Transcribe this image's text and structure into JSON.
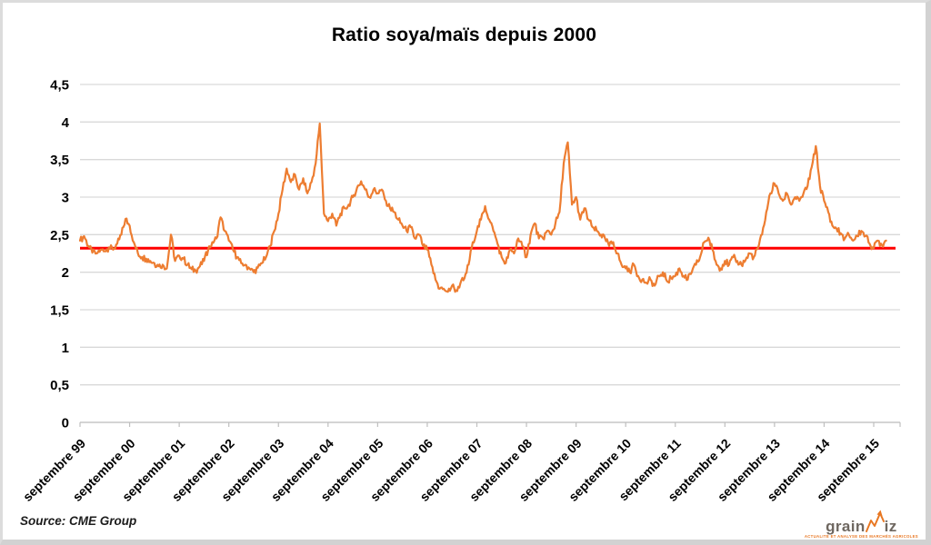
{
  "title": "Ratio soya/maïs depuis 2000",
  "source_note": "Source: CME Group",
  "logo": {
    "text_grain": "grain",
    "text_iz": "iz",
    "tagline": "ACTUALITÉ ET ANALYSE DES MARCHÉS AGRICOLES",
    "accent_color": "#E87722",
    "text_color": "#6E6760"
  },
  "colors": {
    "series_orange": "#ED7D31",
    "reference_red": "#FF0000",
    "gridline": "#D9D9D9",
    "axis": "#BFBFBF",
    "text": "#000000",
    "frame_border": "#D2D2D2"
  },
  "chart_data": {
    "type": "line",
    "title": "Ratio soya/maïs depuis 2000",
    "xlabel": "",
    "ylabel": "",
    "ylim": [
      0,
      4.5
    ],
    "y_tick_step": 0.5,
    "grid": true,
    "legend": "none",
    "x_start_label": "septembre 1999",
    "x_frequency": "monthly",
    "x_tick_labels": [
      "septembre 99",
      "septembre 00",
      "septembre 01",
      "septembre 02",
      "septembre 03",
      "septembre 04",
      "septembre 05",
      "septembre 06",
      "septembre 07",
      "septembre 08",
      "septembre 09",
      "septembre 10",
      "septembre 11",
      "septembre 12",
      "septembre 13",
      "septembre 14",
      "septembre 15"
    ],
    "y_tick_labels": [
      "0",
      "0,5",
      "1",
      "1,5",
      "2",
      "2,5",
      "3",
      "3,5",
      "4",
      "4,5"
    ],
    "reference_line": {
      "value": 2.32,
      "color": "#FF0000",
      "description": "ligne rouge horizontale"
    },
    "noise_amplitude": 0.045,
    "series": [
      {
        "name": "Ratio soya/maïs",
        "color": "#ED7D31",
        "values": [
          2.42,
          2.48,
          2.35,
          2.26,
          2.25,
          2.3,
          2.28,
          2.33,
          2.3,
          2.38,
          2.5,
          2.71,
          2.62,
          2.4,
          2.25,
          2.2,
          2.18,
          2.15,
          2.12,
          2.08,
          2.1,
          2.05,
          2.5,
          2.15,
          2.22,
          2.18,
          2.1,
          2.04,
          2.02,
          2.08,
          2.15,
          2.3,
          2.4,
          2.45,
          2.73,
          2.55,
          2.42,
          2.3,
          2.2,
          2.12,
          2.1,
          2.05,
          2.0,
          2.06,
          2.12,
          2.2,
          2.35,
          2.55,
          2.78,
          3.1,
          3.38,
          3.2,
          3.3,
          3.1,
          3.25,
          3.05,
          3.2,
          3.45,
          3.98,
          2.78,
          2.68,
          2.78,
          2.62,
          2.78,
          2.85,
          2.9,
          3.0,
          3.12,
          3.21,
          3.1,
          3.0,
          3.1,
          3.05,
          3.1,
          2.95,
          2.85,
          2.8,
          2.7,
          2.62,
          2.55,
          2.6,
          2.45,
          2.5,
          2.35,
          2.3,
          2.1,
          1.9,
          1.78,
          1.78,
          1.74,
          1.82,
          1.76,
          1.85,
          1.92,
          2.1,
          2.4,
          2.55,
          2.7,
          2.88,
          2.7,
          2.55,
          2.38,
          2.2,
          2.12,
          2.3,
          2.25,
          2.45,
          2.35,
          2.2,
          2.5,
          2.65,
          2.45,
          2.45,
          2.55,
          2.5,
          2.65,
          2.8,
          3.45,
          3.73,
          2.9,
          3.0,
          2.7,
          2.85,
          2.7,
          2.6,
          2.55,
          2.5,
          2.45,
          2.35,
          2.4,
          2.25,
          2.1,
          2.05,
          2.0,
          2.1,
          1.95,
          1.9,
          1.86,
          1.9,
          1.82,
          1.95,
          2.0,
          1.88,
          1.92,
          1.95,
          2.05,
          1.95,
          1.9,
          2.0,
          2.1,
          2.2,
          2.4,
          2.46,
          2.3,
          2.1,
          2.05,
          2.15,
          2.1,
          2.2,
          2.15,
          2.1,
          2.16,
          2.25,
          2.2,
          2.32,
          2.5,
          2.8,
          3.05,
          3.18,
          3.05,
          2.95,
          3.05,
          2.9,
          3.0,
          2.95,
          3.05,
          3.15,
          3.4,
          3.68,
          3.15,
          2.95,
          2.8,
          2.62,
          2.58,
          2.52,
          2.45,
          2.5,
          2.42,
          2.48,
          2.55,
          2.48,
          2.38,
          2.32,
          2.42,
          2.36,
          2.42
        ]
      }
    ]
  }
}
